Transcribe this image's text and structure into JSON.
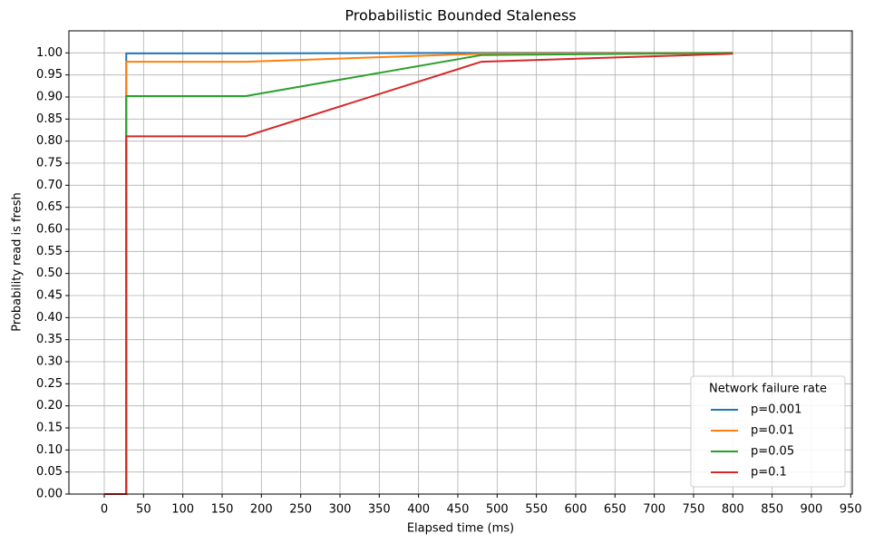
{
  "chart_data": {
    "type": "line",
    "title": "Probabilistic Bounded Staleness",
    "x_label": "Elapsed time (ms)",
    "y_label": "Probability read is fresh",
    "x": [
      0,
      28,
      28,
      180,
      480,
      800
    ],
    "series": [
      {
        "name": "p=0.001",
        "color": "#1f77b4",
        "values": [
          0,
          0,
          0.999,
          0.999,
          1,
          1
        ]
      },
      {
        "name": "p=0.01",
        "color": "#ff7f0e",
        "values": [
          0,
          0,
          0.98,
          0.98,
          0.998,
          1
        ]
      },
      {
        "name": "p=0.05",
        "color": "#2ca02c",
        "values": [
          0,
          0,
          0.902,
          0.902,
          0.995,
          1
        ]
      },
      {
        "name": "p=0.1",
        "color": "#d62728",
        "values": [
          0,
          0,
          0.811,
          0.811,
          0.98,
          0.998
        ]
      }
    ],
    "legend_title": "Network failure rate",
    "legend": "lower right",
    "grid": true,
    "xlim": [
      -45,
      952
    ],
    "ylim": [
      0,
      1.05
    ],
    "xticks": [
      0,
      50,
      100,
      150,
      200,
      250,
      300,
      350,
      400,
      450,
      500,
      550,
      600,
      650,
      700,
      750,
      800,
      850,
      900,
      950
    ],
    "yticks": [
      {
        "value": 0,
        "label": "0.00"
      },
      {
        "value": 0.05,
        "label": "0.05"
      },
      {
        "value": 0.1,
        "label": "0.10"
      },
      {
        "value": 0.15,
        "label": "0.15"
      },
      {
        "value": 0.2,
        "label": "0.20"
      },
      {
        "value": 0.25,
        "label": "0.25"
      },
      {
        "value": 0.3,
        "label": "0.30"
      },
      {
        "value": 0.35,
        "label": "0.35"
      },
      {
        "value": 0.4,
        "label": "0.40"
      },
      {
        "value": 0.45,
        "label": "0.45"
      },
      {
        "value": 0.5,
        "label": "0.50"
      },
      {
        "value": 0.55,
        "label": "0.55"
      },
      {
        "value": 0.6,
        "label": "0.60"
      },
      {
        "value": 0.65,
        "label": "0.65"
      },
      {
        "value": 0.7,
        "label": "0.70"
      },
      {
        "value": 0.75,
        "label": "0.75"
      },
      {
        "value": 0.8,
        "label": "0.80"
      },
      {
        "value": 0.85,
        "label": "0.85"
      },
      {
        "value": 0.9,
        "label": "0.90"
      },
      {
        "value": 0.95,
        "label": "0.95"
      },
      {
        "value": 1,
        "label": "1.00"
      }
    ]
  }
}
